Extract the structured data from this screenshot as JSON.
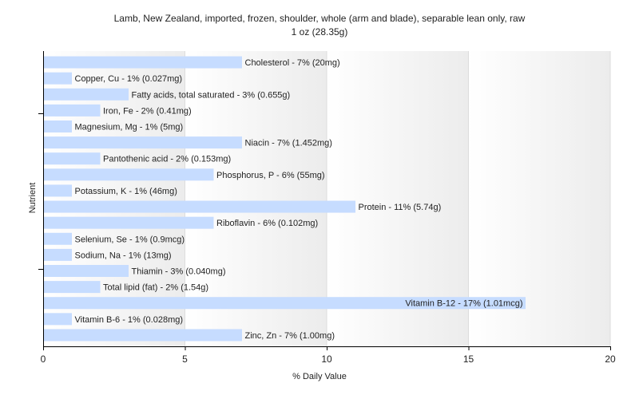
{
  "chart_data": {
    "type": "bar",
    "orientation": "horizontal",
    "title": "Lamb, New Zealand, imported, frozen, shoulder, whole (arm and blade), separable lean only, raw",
    "subtitle": "1 oz (28.35g)",
    "xlabel": "% Daily Value",
    "ylabel": "Nutrient",
    "xlim": [
      0,
      20
    ],
    "x_ticks": [
      "0",
      "5",
      "10",
      "15",
      "20"
    ],
    "grid": true,
    "bar_color": "#c6dcff",
    "categories": [
      "Cholesterol",
      "Copper, Cu",
      "Fatty acids, total saturated",
      "Iron, Fe",
      "Magnesium, Mg",
      "Niacin",
      "Pantothenic acid",
      "Phosphorus, P",
      "Potassium, K",
      "Protein",
      "Riboflavin",
      "Selenium, Se",
      "Sodium, Na",
      "Thiamin",
      "Total lipid (fat)",
      "Vitamin B-12",
      "Vitamin B-6",
      "Zinc, Zn"
    ],
    "values": [
      7,
      1,
      3,
      2,
      1,
      7,
      2,
      6,
      1,
      11,
      6,
      1,
      1,
      3,
      2,
      17,
      1,
      7
    ],
    "labels": [
      "Cholesterol - 7% (20mg)",
      "Copper, Cu - 1% (0.027mg)",
      "Fatty acids, total saturated - 3% (0.655g)",
      "Iron, Fe - 2% (0.41mg)",
      "Magnesium, Mg - 1% (5mg)",
      "Niacin - 7% (1.452mg)",
      "Pantothenic acid - 2% (0.153mg)",
      "Phosphorus, P - 6% (55mg)",
      "Potassium, K - 1% (46mg)",
      "Protein - 11% (5.74g)",
      "Riboflavin - 6% (0.102mg)",
      "Selenium, Se - 1% (0.9mcg)",
      "Sodium, Na - 1% (13mg)",
      "Thiamin - 3% (0.040mg)",
      "Total lipid (fat) - 2% (1.54g)",
      "Vitamin B-12 - 17% (1.01mcg)",
      "Vitamin B-6 - 1% (0.028mg)",
      "Zinc, Zn - 7% (1.00mg)"
    ]
  }
}
